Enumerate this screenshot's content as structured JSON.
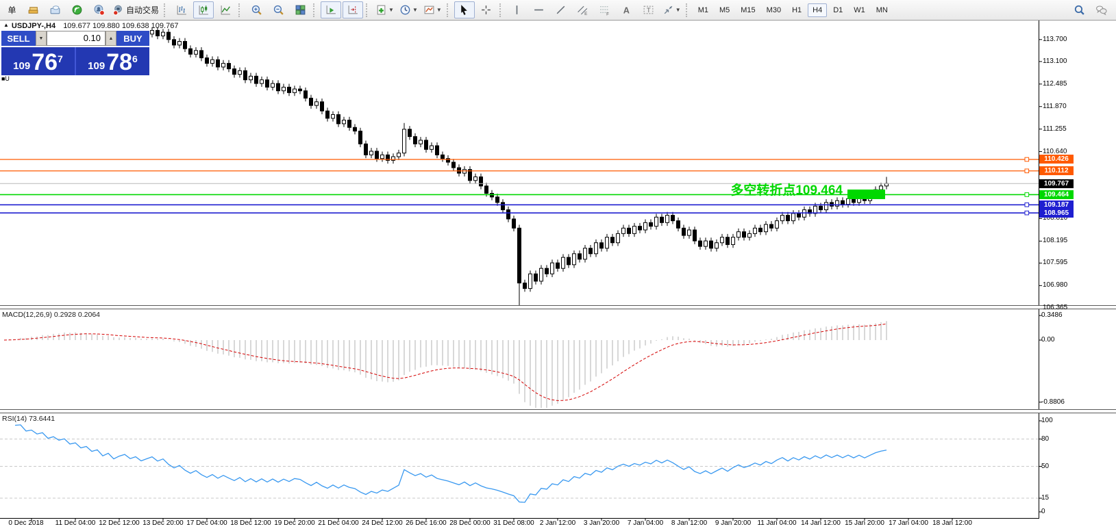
{
  "toolbar": {
    "groups": [
      {
        "items": [
          {
            "name": "new-order",
            "text": "单"
          },
          {
            "name": "market"
          },
          {
            "name": "vps"
          },
          {
            "name": "signals"
          },
          {
            "name": "community"
          },
          {
            "name": "autotrading",
            "text": "自动交易"
          }
        ]
      },
      {
        "items": [
          {
            "name": "bar-chart"
          },
          {
            "name": "candlestick",
            "active": true
          },
          {
            "name": "line-chart"
          }
        ]
      },
      {
        "items": [
          {
            "name": "zoom-in"
          },
          {
            "name": "zoom-out"
          },
          {
            "name": "tile-windows"
          }
        ]
      },
      {
        "items": [
          {
            "name": "autoscroll",
            "active": true
          },
          {
            "name": "chart-shift",
            "active": true
          }
        ]
      },
      {
        "items": [
          {
            "name": "indicators",
            "dropdown": true
          },
          {
            "name": "periods",
            "dropdown": true
          },
          {
            "name": "templates",
            "dropdown": true
          }
        ]
      },
      {
        "items": [
          {
            "name": "cursor",
            "active": true
          },
          {
            "name": "crosshair"
          }
        ]
      },
      {
        "items": [
          {
            "name": "vertical-line"
          },
          {
            "name": "horizontal-line"
          },
          {
            "name": "trendline"
          },
          {
            "name": "equidistant-channel"
          },
          {
            "name": "fibonacci"
          },
          {
            "name": "text"
          },
          {
            "name": "text-label"
          },
          {
            "name": "arrows",
            "dropdown": true
          }
        ]
      },
      {
        "items": [
          {
            "name": "tf-m1",
            "text": "M1"
          },
          {
            "name": "tf-m5",
            "text": "M5"
          },
          {
            "name": "tf-m15",
            "text": "M15"
          },
          {
            "name": "tf-m30",
            "text": "M30"
          },
          {
            "name": "tf-h1",
            "text": "H1"
          },
          {
            "name": "tf-h4",
            "text": "H4",
            "active": true
          },
          {
            "name": "tf-d1",
            "text": "D1"
          },
          {
            "name": "tf-w1",
            "text": "W1"
          },
          {
            "name": "tf-mn",
            "text": "MN"
          }
        ]
      }
    ],
    "right_items": [
      {
        "name": "search"
      },
      {
        "name": "chat"
      }
    ]
  },
  "chart": {
    "title": {
      "marker": "▲",
      "symbol": "USDJPY-,H4",
      "open": "109.677",
      "high": "109.880",
      "low": "109.638",
      "close": "109.767"
    },
    "trade_panel": {
      "sell_label": "SELL",
      "buy_label": "BUY",
      "volume": "0.10",
      "sell_small": "109",
      "sell_big": "76",
      "sell_sup": "7",
      "buy_small": "109",
      "buy_big": "78",
      "buy_sup": "6",
      "spin_down": "▼",
      "spin_up": "▲"
    },
    "annotation": {
      "text": "多空转折点109.464",
      "color": "#00d800"
    },
    "object_marker": "■U"
  },
  "indicators": {
    "macd_label": "MACD(12,26,9) 0.2928 0.2064",
    "rsi_label": "RSI(14) 73.6441"
  },
  "chart_data": [
    {
      "type": "candlestick",
      "title": "USDJPY-,H4",
      "ohlc_display": [
        "109.677",
        "109.880",
        "109.638",
        "109.767"
      ],
      "ylim": [
        106.3,
        114.22
      ],
      "default_wick": 0.09,
      "hidden_before_index": 27,
      "closes": [
        113.6,
        113.75,
        113.65,
        113.85,
        113.7,
        113.9,
        113.8,
        114.0,
        113.85,
        114.05,
        113.95,
        114.1,
        113.95,
        114.05,
        113.9,
        114.0,
        113.85,
        113.95,
        113.75,
        113.9,
        113.7,
        113.85,
        113.95,
        113.8,
        113.9,
        113.75,
        113.85,
        113.95,
        113.8,
        113.9,
        113.7,
        113.55,
        113.65,
        113.45,
        113.3,
        113.4,
        113.2,
        113.05,
        113.15,
        112.95,
        113.05,
        112.9,
        112.75,
        112.85,
        112.6,
        112.7,
        112.5,
        112.6,
        112.4,
        112.5,
        112.3,
        112.4,
        112.25,
        112.35,
        112.3,
        112.1,
        111.9,
        112.0,
        111.75,
        111.55,
        111.65,
        111.4,
        111.5,
        111.3,
        111.2,
        110.85,
        110.55,
        110.65,
        110.45,
        110.55,
        110.4,
        110.5,
        110.6,
        111.25,
        111.05,
        110.85,
        110.95,
        110.7,
        110.8,
        110.55,
        110.45,
        110.35,
        110.2,
        110.05,
        110.15,
        109.85,
        109.95,
        109.7,
        109.5,
        109.4,
        109.25,
        109.05,
        108.8,
        108.55,
        107.05,
        106.9,
        107.3,
        107.1,
        107.45,
        107.3,
        107.6,
        107.45,
        107.75,
        107.55,
        107.85,
        107.7,
        108.0,
        107.85,
        108.15,
        108.0,
        108.3,
        108.15,
        108.4,
        108.55,
        108.4,
        108.6,
        108.5,
        108.7,
        108.6,
        108.85,
        108.7,
        108.9,
        108.75,
        108.55,
        108.35,
        108.5,
        108.2,
        108.05,
        108.2,
        108.0,
        108.15,
        108.3,
        108.1,
        108.3,
        108.45,
        108.3,
        108.4,
        108.55,
        108.45,
        108.65,
        108.55,
        108.75,
        108.9,
        108.75,
        108.95,
        108.85,
        109.05,
        108.95,
        109.15,
        109.05,
        109.25,
        109.15,
        109.3,
        109.2,
        109.35,
        109.25,
        109.4,
        109.3,
        109.45,
        109.6,
        109.7,
        109.77
      ],
      "overrides": [
        {
          "index": 73,
          "high": 111.42
        },
        {
          "index": 94,
          "low": 106.42
        },
        {
          "index": 161,
          "high": 109.95
        }
      ],
      "y_ticks": [
        "113.700",
        "113.100",
        "112.485",
        "111.870",
        "111.255",
        "110.640",
        "108.810",
        "108.195",
        "107.595",
        "106.980",
        "106.365"
      ],
      "x_labels": [
        "0 Dec 2018",
        "11 Dec 04:00",
        "12 Dec 12:00",
        "13 Dec 20:00",
        "17 Dec 04:00",
        "18 Dec 12:00",
        "19 Dec 20:00",
        "21 Dec 04:00",
        "24 Dec 12:00",
        "26 Dec 16:00",
        "28 Dec 00:00",
        "31 Dec 08:00",
        "2 Jan 12:00",
        "3 Jan 20:00",
        "7 Jan 04:00",
        "8 Jan 12:00",
        "9 Jan 20:00",
        "11 Jan 04:00",
        "14 Jan 12:00",
        "15 Jan 20:00",
        "17 Jan 04:00",
        "18 Jan 12:00"
      ],
      "price_lines": [
        {
          "value": 110.426,
          "label": "110.426",
          "color": "#ff5a00",
          "width": 1.3,
          "handle": true
        },
        {
          "value": 110.112,
          "label": "110.112",
          "color": "#ff5a00",
          "width": 1.3,
          "handle": true
        },
        {
          "value": 109.767,
          "label": "109.767",
          "color": "#b8b8b8",
          "label_bg": "#000000",
          "width": 1,
          "handle": false
        },
        {
          "value": 109.464,
          "label": "109.464",
          "color": "#00d800",
          "width": 1.6,
          "handle": true
        },
        {
          "value": 109.187,
          "label": "109.187",
          "color": "#1f1fd0",
          "width": 1.6,
          "handle": true
        },
        {
          "value": 108.965,
          "label": "108.965",
          "color": "#1f1fd0",
          "width": 1.6,
          "handle": true
        }
      ],
      "annotation_rect": {
        "x": 1237,
        "y": 277,
        "w": 55,
        "h": 14,
        "color": "#00d800"
      },
      "candle_up_color": "#ffffff",
      "candle_down_color": "#000000",
      "candle_border": "#000000"
    },
    {
      "type": "macd",
      "params": [
        12,
        26,
        9
      ],
      "display_values": "0.2928 0.2064",
      "derived_from": "closes",
      "y_ticks": [
        {
          "label": "0.3486",
          "value": 0.3486
        },
        {
          "label": "0.00",
          "value": 0
        },
        {
          "label": "-0.8806",
          "value": -0.8806
        }
      ],
      "hist_color": "#b2b2b2",
      "signal_color": "#d40000"
    },
    {
      "type": "rsi",
      "period": 14,
      "display_value": "73.6441",
      "derived_from": "closes",
      "levels": [
        80,
        50,
        15
      ],
      "y_ticks": [
        {
          "label": "100",
          "value": 100
        },
        {
          "label": "80",
          "value": 80
        },
        {
          "label": "50",
          "value": 50
        },
        {
          "label": "15",
          "value": 15
        },
        {
          "label": "0",
          "value": 0
        }
      ],
      "line_color": "#3898f0",
      "level_color": "#c8c8c8"
    }
  ]
}
